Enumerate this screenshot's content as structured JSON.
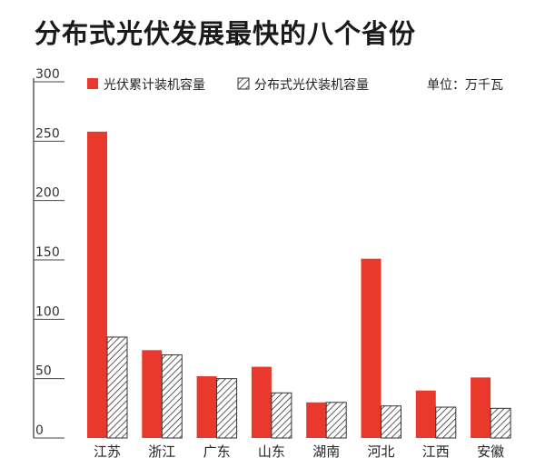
{
  "chart_data": {
    "type": "bar",
    "title": "分布式光伏发展最快的八个省份",
    "unit_label": "单位：万千瓦",
    "categories": [
      "江苏",
      "浙江",
      "广东",
      "山东",
      "湖南",
      "河北",
      "江西",
      "安徽"
    ],
    "series": [
      {
        "name": "光伏累计装机容量",
        "values": [
          258,
          74,
          52,
          60,
          30,
          151,
          40,
          51
        ],
        "color": "#e8392c",
        "pattern": "solid"
      },
      {
        "name": "分布式光伏装机容量",
        "values": [
          85,
          70,
          50,
          38,
          30,
          27,
          26,
          25
        ],
        "color": "#333333",
        "pattern": "hatch"
      }
    ],
    "y_ticks": [
      0,
      50,
      100,
      150,
      200,
      250,
      300
    ],
    "ylim": [
      0,
      300
    ],
    "grid": false,
    "legend_position": "top"
  }
}
